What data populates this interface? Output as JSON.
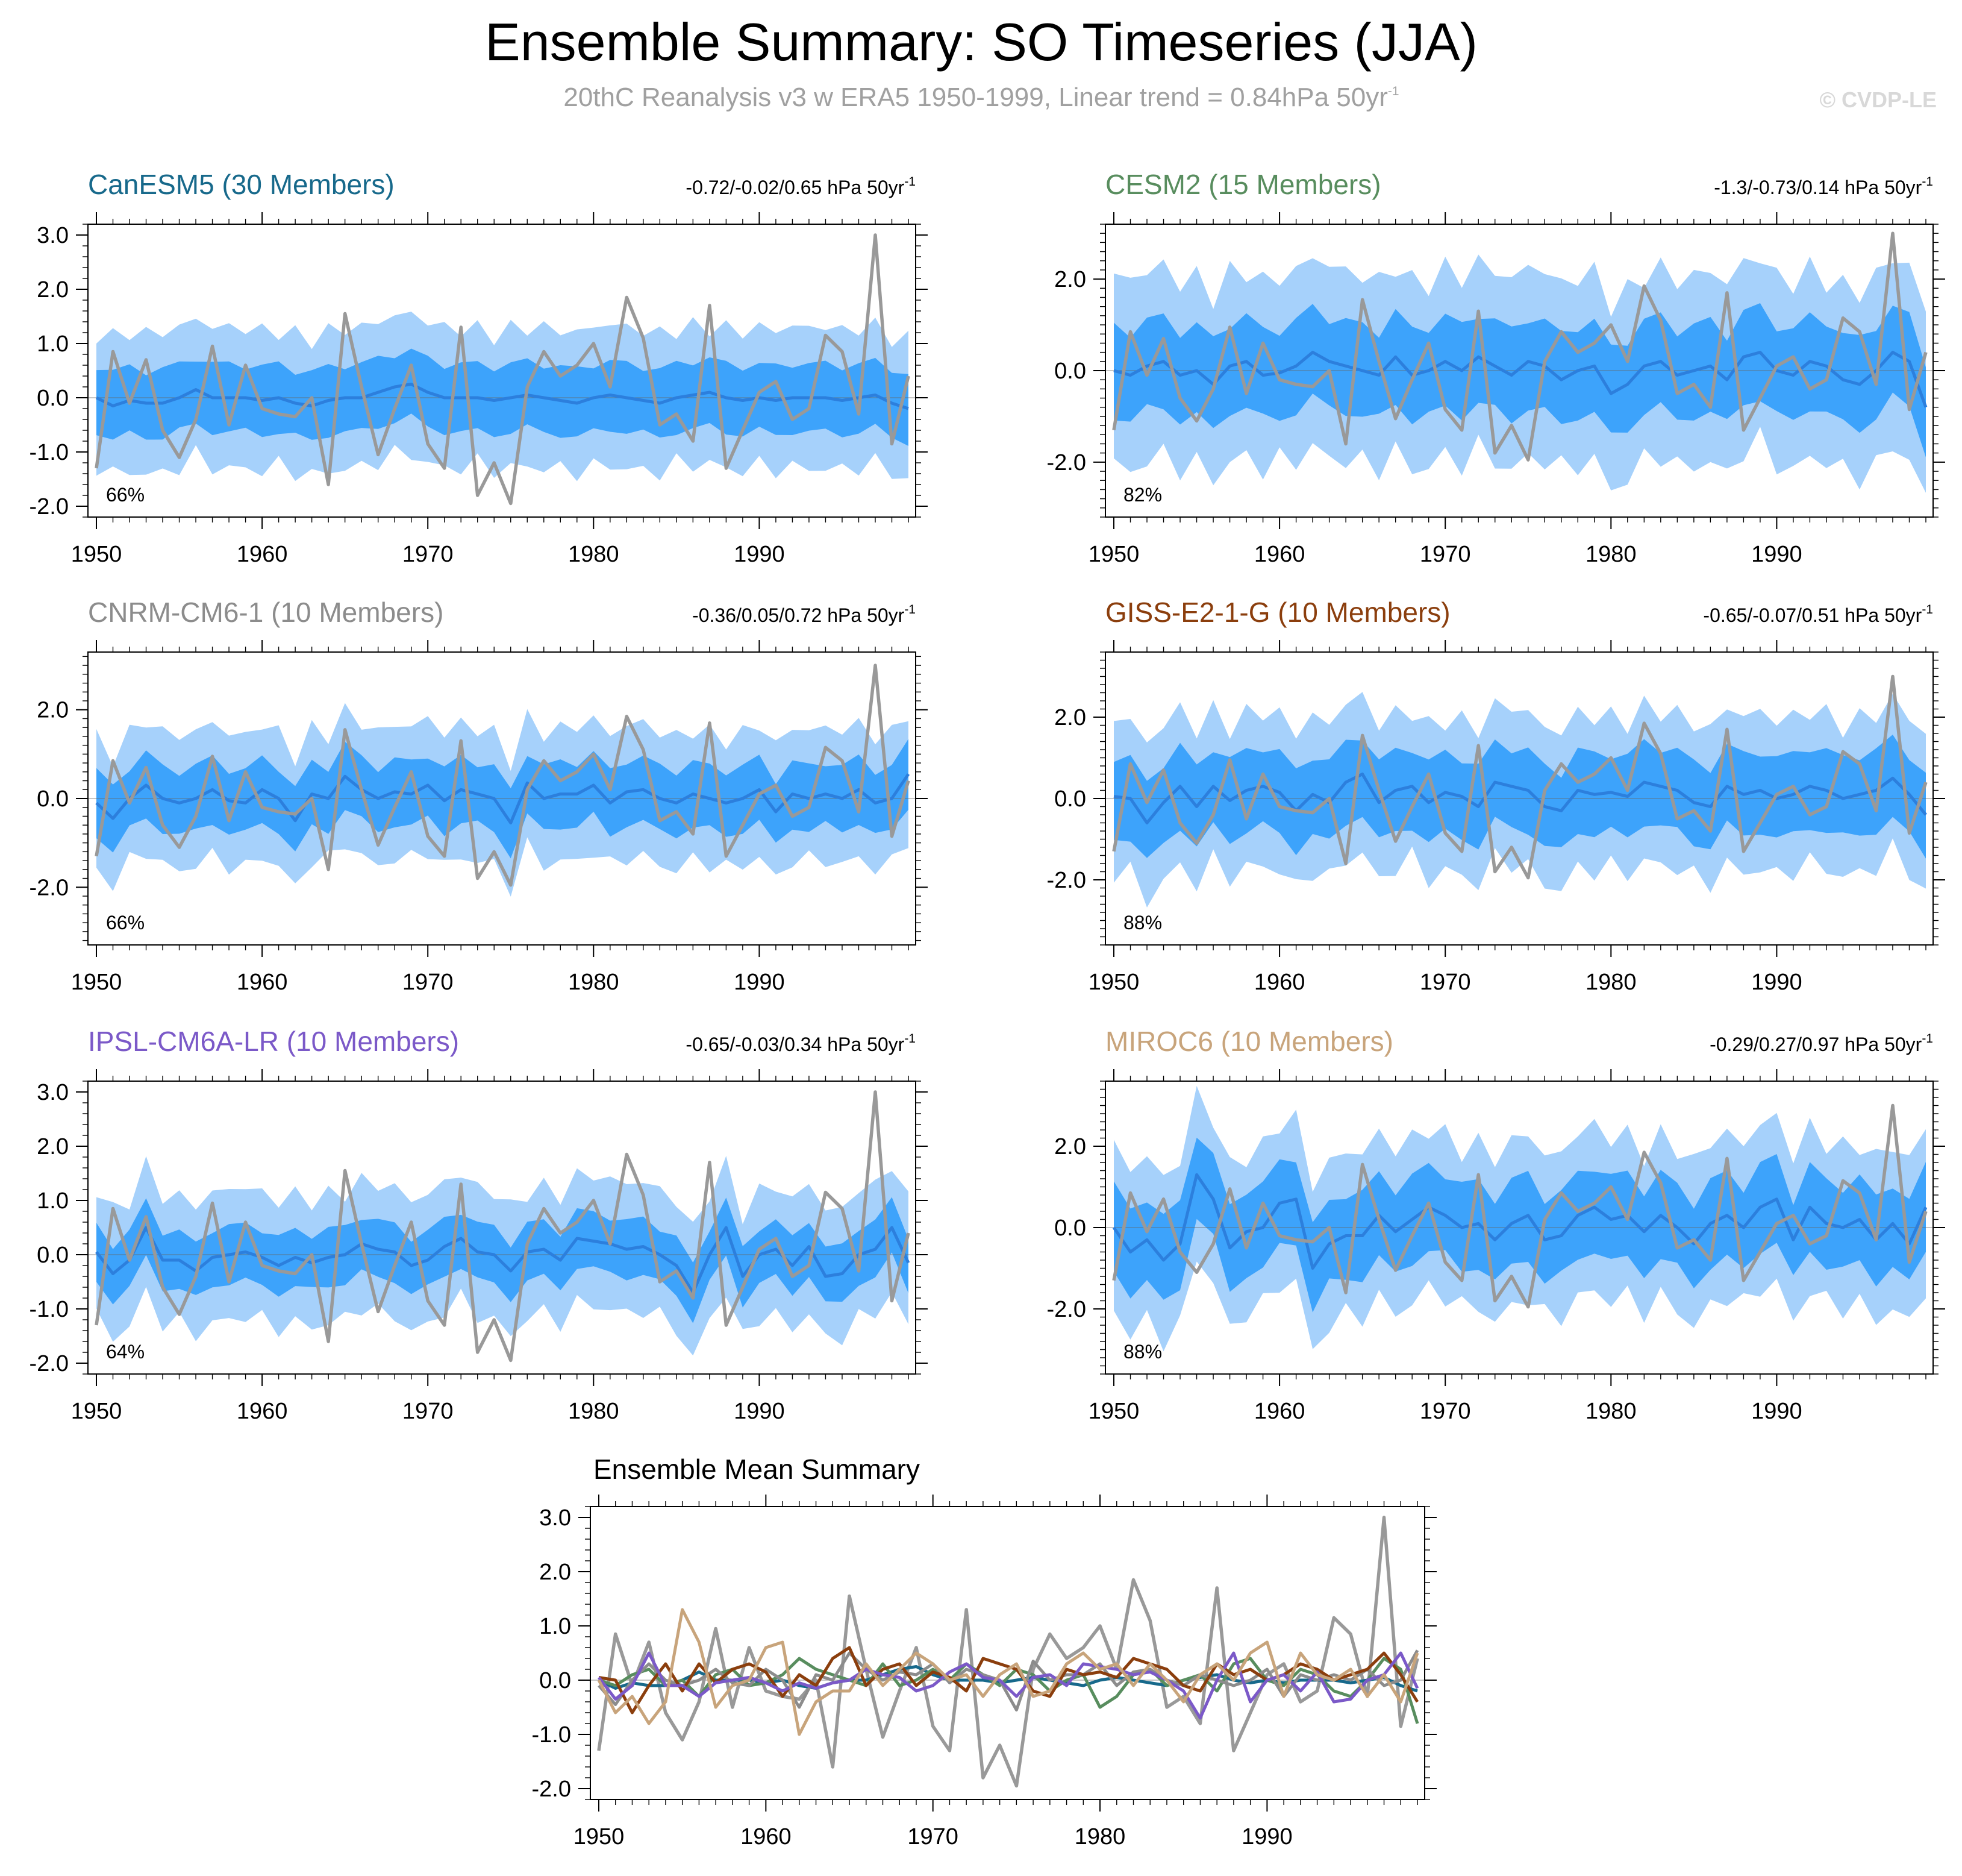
{
  "figure": {
    "title": "Ensemble Summary: SO Timeseries (JJA)",
    "subtitle_text": "20thC Reanalysis v3 w ERA5 1950-1999, Linear trend = 0.84hPa 50yr",
    "subtitle_sup": "-1",
    "credit": "© CVDP-LE"
  },
  "colors": {
    "band_outer": "#a6d1fb",
    "band_inner": "#3da3fb",
    "mean_line": "#2c7fdd",
    "obs_line": "#999999"
  },
  "chart_data": {
    "type": "line",
    "x_start": 1950,
    "x_end": 1999,
    "x_ticks": [
      "1950",
      "1960",
      "1970",
      "1980",
      "1990"
    ],
    "observed": [
      -1.3,
      0.85,
      -0.1,
      0.7,
      -0.6,
      -1.1,
      -0.4,
      0.95,
      -0.5,
      0.6,
      -0.2,
      -0.3,
      -0.35,
      0.0,
      -1.6,
      1.55,
      0.2,
      -1.05,
      -0.2,
      0.6,
      -0.85,
      -1.3,
      1.3,
      -1.8,
      -1.2,
      -1.95,
      0.2,
      0.85,
      0.4,
      0.6,
      1.0,
      0.2,
      1.85,
      1.1,
      -0.5,
      -0.3,
      -0.8,
      1.7,
      -1.3,
      -0.6,
      0.1,
      0.3,
      -0.4,
      -0.2,
      1.15,
      0.85,
      -0.3,
      3.0,
      -0.85,
      0.4
    ],
    "panels": [
      {
        "model": "CanESM5",
        "title": "CanESM5 (30 Members)",
        "title_color": "#17698b",
        "trend_text": "-0.72/-0.02/0.65 hPa 50yr",
        "trend_sup": "-1",
        "percent": "66%",
        "ylim": [
          -2.2,
          3.2
        ],
        "yticks": [
          "3.0",
          "2.0",
          "1.0",
          "0.0",
          "-1.0",
          "-2.0"
        ],
        "ytick_values": [
          3,
          2,
          1,
          0,
          -1,
          -2
        ],
        "mean": [
          0.0,
          -0.15,
          -0.05,
          -0.1,
          -0.1,
          0.0,
          0.15,
          0.0,
          0.0,
          0.0,
          -0.05,
          0.0,
          -0.1,
          -0.15,
          -0.05,
          0.0,
          0.0,
          0.1,
          0.2,
          0.25,
          0.1,
          0.0,
          0.0,
          0.0,
          -0.05,
          0.0,
          0.05,
          0.0,
          -0.05,
          -0.1,
          0.0,
          0.05,
          0.0,
          -0.05,
          -0.1,
          0.0,
          0.05,
          0.1,
          0.0,
          -0.05,
          0.0,
          -0.05,
          0.0,
          0.0,
          0.0,
          -0.05,
          0.0,
          0.05,
          -0.1,
          -0.2
        ],
        "inner_spread": 0.6,
        "outer_spread": 1.25
      },
      {
        "model": "CESM2",
        "title": "CESM2 (15 Members)",
        "title_color": "#588d5e",
        "trend_text": "-1.3/-0.73/0.14 hPa 50yr",
        "trend_sup": "-1",
        "percent": "82%",
        "ylim": [
          -3.2,
          3.2
        ],
        "yticks": [
          "2.0",
          "0.0",
          "-2.0"
        ],
        "ytick_values": [
          2,
          0,
          -2
        ],
        "mean": [
          0.0,
          -0.1,
          0.1,
          0.2,
          -0.1,
          0.0,
          -0.3,
          0.1,
          0.2,
          -0.1,
          -0.05,
          0.1,
          0.4,
          0.2,
          0.1,
          0.0,
          -0.1,
          0.3,
          -0.1,
          0.0,
          0.2,
          0.0,
          0.3,
          0.1,
          -0.1,
          0.2,
          0.1,
          -0.2,
          0.0,
          0.1,
          -0.5,
          -0.3,
          0.1,
          0.2,
          -0.1,
          0.0,
          0.1,
          -0.2,
          0.3,
          0.4,
          0.0,
          -0.1,
          0.2,
          0.1,
          -0.2,
          -0.3,
          0.0,
          0.4,
          0.2,
          -0.8
        ],
        "inner_spread": 0.95,
        "outer_spread": 2.0
      },
      {
        "model": "CNRM-CM6-1",
        "title": "CNRM-CM6-1 (10 Members)",
        "title_color": "#8c8c8c",
        "trend_text": "-0.36/0.05/0.72 hPa 50yr",
        "trend_sup": "-1",
        "percent": "66%",
        "ylim": [
          -3.3,
          3.3
        ],
        "yticks": [
          "2.0",
          "0.0",
          "-2.0"
        ],
        "ytick_values": [
          2,
          0,
          -2
        ],
        "mean": [
          -0.1,
          -0.45,
          0.0,
          0.3,
          0.0,
          -0.1,
          0.0,
          0.2,
          -0.05,
          -0.1,
          0.2,
          0.0,
          -0.5,
          0.1,
          0.0,
          0.5,
          0.2,
          0.0,
          0.15,
          0.1,
          0.3,
          -0.05,
          0.2,
          0.1,
          0.0,
          -0.55,
          0.35,
          0.0,
          0.1,
          0.1,
          0.3,
          -0.1,
          0.15,
          0.2,
          0.0,
          -0.1,
          0.1,
          0.0,
          -0.1,
          0.0,
          0.2,
          -0.3,
          0.1,
          0.0,
          0.1,
          0.0,
          0.2,
          -0.1,
          0.0,
          0.55
        ],
        "inner_spread": 0.7,
        "outer_spread": 1.45
      },
      {
        "model": "GISS-E2-1-G",
        "title": "GISS-E2-1-G (10 Members)",
        "title_color": "#8b3e0d",
        "trend_text": "-0.65/-0.07/0.51 hPa 50yr",
        "trend_sup": "-1",
        "percent": "88%",
        "ylim": [
          -3.6,
          3.6
        ],
        "yticks": [
          "2.0",
          "0.0",
          "-2.0"
        ],
        "ytick_values": [
          2,
          0,
          -2
        ],
        "mean": [
          0.05,
          0.0,
          -0.6,
          -0.1,
          0.3,
          -0.2,
          0.3,
          -0.05,
          0.2,
          0.3,
          0.15,
          -0.3,
          0.1,
          -0.1,
          0.4,
          0.6,
          -0.1,
          0.2,
          0.3,
          -0.1,
          0.15,
          0.05,
          -0.2,
          0.4,
          0.3,
          0.2,
          -0.2,
          -0.3,
          0.2,
          0.1,
          0.15,
          0.05,
          0.4,
          0.3,
          0.2,
          -0.1,
          -0.2,
          0.3,
          0.1,
          0.2,
          0.0,
          0.1,
          0.3,
          0.2,
          0.0,
          0.1,
          0.2,
          0.5,
          0.1,
          -0.4
        ],
        "inner_spread": 0.95,
        "outer_spread": 1.85
      },
      {
        "model": "IPSL-CM6A-LR",
        "title": "IPSL-CM6A-LR (10 Members)",
        "title_color": "#7b59c8",
        "trend_text": "-0.65/-0.03/0.34 hPa 50yr",
        "trend_sup": "-1",
        "percent": "64%",
        "ylim": [
          -2.2,
          3.2
        ],
        "yticks": [
          "3.0",
          "2.0",
          "1.0",
          "0.0",
          "-1.0",
          "-2.0"
        ],
        "ytick_values": [
          3,
          2,
          1,
          0,
          -1,
          -2
        ],
        "mean": [
          0.05,
          -0.35,
          -0.1,
          0.5,
          -0.1,
          -0.1,
          -0.3,
          -0.05,
          0.0,
          0.05,
          -0.05,
          -0.2,
          -0.05,
          -0.15,
          -0.05,
          0.0,
          0.2,
          0.1,
          0.05,
          -0.2,
          -0.1,
          0.15,
          0.3,
          0.05,
          0.0,
          -0.3,
          0.05,
          0.1,
          -0.1,
          0.3,
          0.25,
          0.2,
          0.1,
          0.15,
          0.0,
          -0.2,
          -0.7,
          0.0,
          0.5,
          -0.4,
          0.0,
          0.1,
          -0.2,
          0.15,
          -0.4,
          -0.35,
          0.0,
          0.1,
          0.5,
          -0.15
        ],
        "inner_spread": 0.5,
        "outer_spread": 1.15
      },
      {
        "model": "MIROC6",
        "title": "MIROC6 (10 Members)",
        "title_color": "#c8a47b",
        "trend_text": "-0.29/0.27/0.97 hPa 50yr",
        "trend_sup": "-1",
        "percent": "88%",
        "ylim": [
          -3.6,
          3.6
        ],
        "yticks": [
          "2.0",
          "0.0",
          "-2.0"
        ],
        "ytick_values": [
          2,
          0,
          -2
        ],
        "mean": [
          0.0,
          -0.6,
          -0.3,
          -0.8,
          -0.4,
          1.3,
          0.7,
          -0.5,
          -0.1,
          0.0,
          0.6,
          0.7,
          -1.0,
          -0.4,
          -0.2,
          -0.2,
          0.3,
          -0.1,
          0.2,
          0.5,
          0.3,
          0.0,
          0.1,
          -0.3,
          0.1,
          0.3,
          -0.3,
          -0.2,
          0.3,
          0.5,
          0.2,
          0.3,
          -0.1,
          0.3,
          0.0,
          -0.4,
          0.1,
          0.3,
          0.0,
          0.5,
          0.7,
          -0.3,
          0.5,
          0.1,
          0.0,
          0.2,
          -0.3,
          0.1,
          -0.4,
          0.5
        ],
        "inner_spread": 1.0,
        "outer_spread": 1.95
      }
    ],
    "ensemble_mean_summary": {
      "title": "Ensemble Mean Summary",
      "ylim": [
        -2.2,
        3.2
      ],
      "yticks": [
        "3.0",
        "2.0",
        "1.0",
        "0.0",
        "-1.0",
        "-2.0"
      ],
      "ytick_values": [
        3,
        2,
        1,
        0,
        -1,
        -2
      ]
    }
  }
}
